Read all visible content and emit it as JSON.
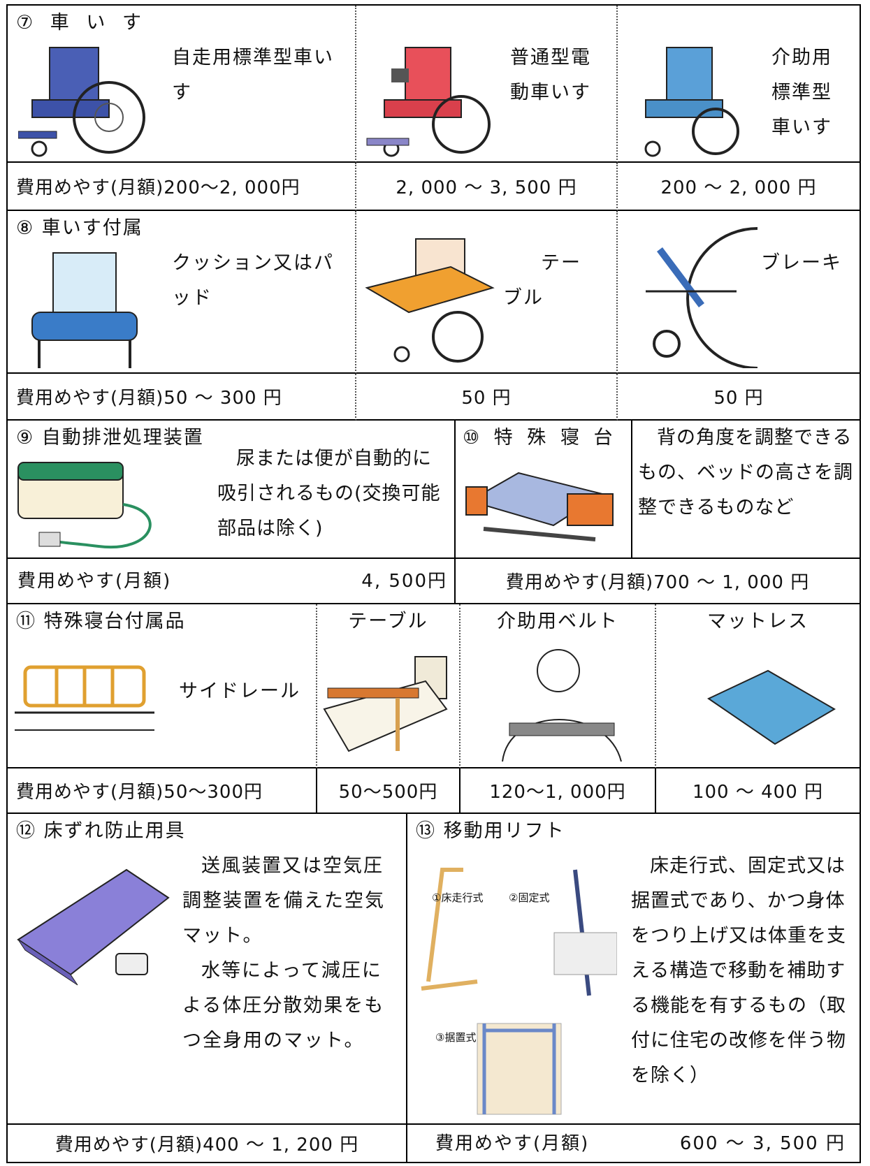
{
  "sections": [
    {
      "title": "⑦ 車 い す",
      "items": [
        {
          "name": "自走用標準型車いす",
          "price": "費用めやす(月額)200～2, 000円"
        },
        {
          "name": "普通型電動車いす",
          "price": "2, 000 ～ 3, 500 円"
        },
        {
          "name": "介助用標準型車いす",
          "price": "200 ～ 2, 000 円"
        }
      ]
    },
    {
      "title": "⑧ 車いす付属",
      "items": [
        {
          "name": "クッション又はパッド",
          "price": "費用めやす(月額)50 ～ 300 円"
        },
        {
          "name": "テーブル",
          "price": "50 円"
        },
        {
          "name": "ブレーキ",
          "price": "50 円"
        }
      ]
    },
    {
      "title": "⑨ 自動排泄処理装置",
      "description": "尿または便が自動的に吸引されるもの(交換可能部品は除く)",
      "price_label": "費用めやす(月額)",
      "price": "4, 500円"
    },
    {
      "title": "⑩ 特 殊 寝 台",
      "description": "背の角度を調整できるもの、ベッドの高さを調整できるものなど",
      "price": "費用めやす(月額)700 ～ 1, 000 円"
    },
    {
      "title": "⑪ 特殊寝台付属品",
      "items": [
        {
          "name": "サイドレール",
          "price": "費用めやす(月額)50～300円"
        },
        {
          "name": "テーブル",
          "price": "50～500円"
        },
        {
          "name": "介助用ベルト",
          "price": "120～1, 000円"
        },
        {
          "name": "マットレス",
          "price": "100 ～ 400 円"
        }
      ]
    },
    {
      "title": "⑫ 床ずれ防止用具",
      "paragraphs": [
        "送風装置又は空気圧調整装置を備えた空気マット。",
        "水等によって減圧による体圧分散効果をもつ全身用のマット。"
      ],
      "price": "費用めやす(月額)400 ～ 1, 200 円"
    },
    {
      "title": "⑬ 移動用リフト",
      "image_labels": [
        "①床走行式",
        "②固定式",
        "③据置式"
      ],
      "description": "床走行式、固定式又は据置式であり、かつ身体をつり上げ又は体重を支える構造で移動を補助する機能を有するもの（取付に住宅の改修を伴う物を除く）",
      "price_label": "費用めやす(月額)",
      "price": "600 ～ 3, 500 円"
    }
  ]
}
